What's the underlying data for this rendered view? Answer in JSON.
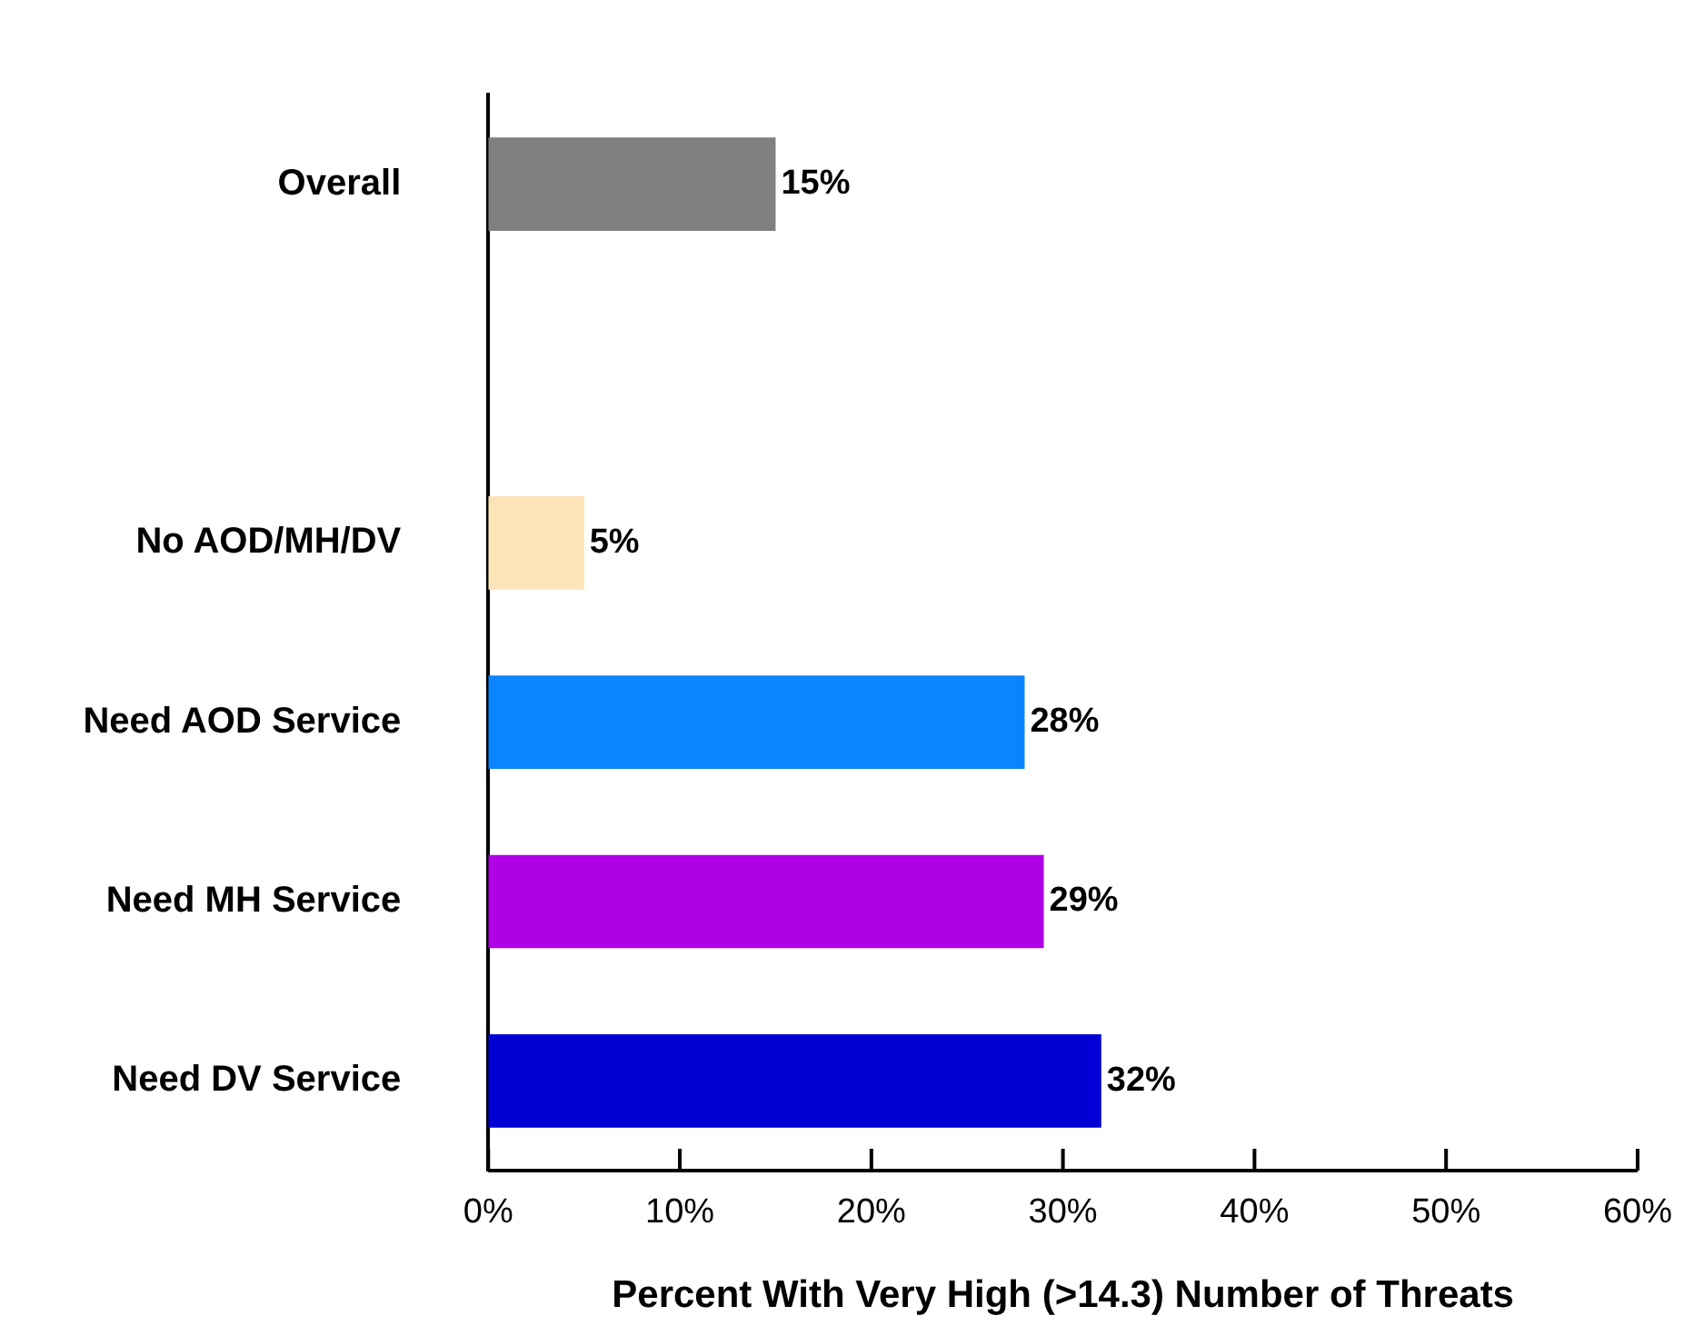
{
  "chart_data": {
    "type": "bar",
    "orientation": "horizontal",
    "xlabel": "Percent With Very High (>14.3) Number of Threats",
    "categories": [
      "Overall",
      null,
      "No AOD/MH/DV",
      "Need AOD Service",
      "Need MH Service",
      "Need DV Service"
    ],
    "values": [
      15,
      null,
      5,
      28,
      29,
      32
    ],
    "colors": [
      "#808080",
      "#808080",
      "#fde3b8",
      "#0a84ff",
      "#b000e6",
      "#0000d4"
    ],
    "value_labels": [
      "15%",
      null,
      "5%",
      "28%",
      "29%",
      "32%"
    ],
    "xlim": [
      0,
      60
    ],
    "xticks": [
      {
        "value": 0,
        "label": "0%"
      },
      {
        "value": 10,
        "label": "10%"
      },
      {
        "value": 20,
        "label": "20%"
      },
      {
        "value": 30,
        "label": "30%"
      },
      {
        "value": 40,
        "label": "40%"
      },
      {
        "value": 50,
        "label": "50%"
      },
      {
        "value": 60,
        "label": "60%"
      }
    ],
    "grid": false,
    "legend": false
  }
}
